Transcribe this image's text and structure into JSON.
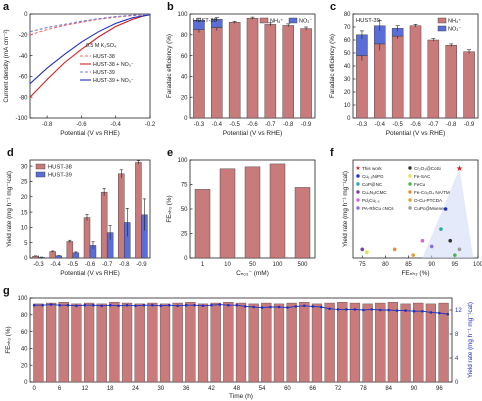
{
  "panels": {
    "a": {
      "letter": "a",
      "type": "line",
      "xlabel": "Potential (V vs RHE)",
      "ylabel": "Current density (mA cm⁻²)",
      "xlim": [
        -0.9,
        -0.2
      ],
      "ylim": [
        -100,
        0
      ],
      "xticks": [
        "-0.8",
        "-0.6",
        "-0.4",
        "-0.2"
      ],
      "yticks": [
        "0",
        "-20",
        "-40",
        "-60",
        "-80",
        "-100"
      ],
      "xtick_values": [
        -0.8,
        -0.6,
        -0.4,
        -0.2
      ],
      "ytick_values": [
        0,
        -20,
        -40,
        -60,
        -80,
        -100
      ],
      "annotation": "0.5 M K₂SO₄",
      "series": [
        {
          "name": "HUST-38",
          "color": "#f06a6a",
          "dash": "3,2",
          "x": [
            -0.9,
            -0.8,
            -0.7,
            -0.6,
            -0.5,
            -0.4,
            -0.3,
            -0.2
          ],
          "y": [
            -20,
            -15,
            -11,
            -8,
            -5,
            -3,
            -1.5,
            -0.5
          ]
        },
        {
          "name": "HUST-38 + NO₃⁻",
          "color": "#d42020",
          "dash": "",
          "x": [
            -0.9,
            -0.8,
            -0.7,
            -0.6,
            -0.5,
            -0.4,
            -0.3,
            -0.22
          ],
          "y": [
            -80,
            -63,
            -47,
            -34,
            -22,
            -12,
            -5,
            -1
          ]
        },
        {
          "name": "HUST-39",
          "color": "#7a7ad0",
          "dash": "3,2",
          "x": [
            -0.9,
            -0.8,
            -0.7,
            -0.6,
            -0.5,
            -0.4,
            -0.3,
            -0.2
          ],
          "y": [
            -17,
            -13,
            -10,
            -7,
            -4.5,
            -2.5,
            -1.2,
            -0.4
          ]
        },
        {
          "name": "HUST-39 + NO₃⁻",
          "color": "#2030c0",
          "dash": "",
          "x": [
            -0.9,
            -0.8,
            -0.7,
            -0.6,
            -0.5,
            -0.4,
            -0.3,
            -0.2
          ],
          "y": [
            -67,
            -52,
            -39,
            -27,
            -17,
            -9,
            -3.5,
            -0.8
          ]
        }
      ]
    },
    "b": {
      "letter": "b",
      "type": "bar",
      "tag": "HUST-38",
      "xlabel": "Potential (V vs RHE)",
      "ylabel": "Faradaic efficiency (%)",
      "ylim": [
        0,
        100
      ],
      "yticks": [
        "0",
        "20",
        "40",
        "60",
        "80",
        "100"
      ],
      "ytick_values": [
        0,
        20,
        40,
        60,
        80,
        100
      ],
      "categories": [
        "-0.3",
        "-0.4",
        "-0.5",
        "-0.6",
        "-0.7",
        "-0.8",
        "-0.9"
      ],
      "series": [
        {
          "name": "NH₄⁺",
          "color": "#c97a7a",
          "values": [
            85,
            87,
            92,
            96,
            90,
            89,
            86
          ],
          "err": [
            3,
            3,
            1,
            1,
            1.5,
            1.5,
            1.5
          ]
        },
        {
          "name": "NO₂⁻",
          "color": "#5a6ed6",
          "values": [
            9,
            8,
            0,
            0,
            0,
            0,
            0
          ],
          "err": [
            2,
            1.5,
            0,
            0,
            0,
            0,
            0
          ]
        }
      ]
    },
    "c": {
      "letter": "c",
      "type": "bar",
      "tag": "HUST-39",
      "xlabel": "Potential (V vs RHE)",
      "ylabel": "Faradaic efficiency (%)",
      "ylim": [
        0,
        80
      ],
      "yticks": [
        "0",
        "10",
        "20",
        "30",
        "40",
        "50",
        "60",
        "70",
        "80"
      ],
      "ytick_values": [
        0,
        10,
        20,
        30,
        40,
        50,
        60,
        70,
        80
      ],
      "categories": [
        "-0.3",
        "-0.4",
        "-0.5",
        "-0.6",
        "-0.7",
        "-0.8",
        "-0.9"
      ],
      "series": [
        {
          "name": "NH₄⁺",
          "color": "#c97a7a",
          "values": [
            48,
            57,
            63,
            71,
            60,
            56,
            51
          ],
          "err": [
            4,
            5,
            2,
            1,
            1,
            1,
            1.5
          ]
        },
        {
          "name": "NO₂⁻",
          "color": "#5a6ed6",
          "values": [
            16,
            14,
            6,
            0,
            0,
            0,
            0
          ],
          "err": [
            3,
            4,
            2,
            0,
            0,
            0,
            0
          ]
        }
      ]
    },
    "d": {
      "letter": "d",
      "type": "bar",
      "xlabel": "Potential (V vs RHE)",
      "ylabel": "Yield rate (mg h⁻¹ mg⁻¹cat)",
      "ylim": [
        0,
        32
      ],
      "yticks": [
        "0",
        "5",
        "10",
        "15",
        "20",
        "25",
        "30"
      ],
      "ytick_values": [
        0,
        5,
        10,
        15,
        20,
        25,
        30
      ],
      "categories": [
        "-0.3",
        "-0.4",
        "-0.5",
        "-0.6",
        "-0.7",
        "-0.8",
        "-0.9"
      ],
      "series": [
        {
          "name": "HUST-38",
          "color": "#c97a7a",
          "values": [
            0.6,
            2.1,
            5.4,
            13.2,
            21.5,
            27.5,
            31.2
          ],
          "err": [
            0.1,
            0.2,
            0.4,
            1.0,
            1.2,
            1.3,
            0.6
          ]
        },
        {
          "name": "HUST-39",
          "color": "#5a6ed6",
          "values": [
            0.2,
            0.7,
            1.7,
            4.1,
            8.3,
            11.6,
            14.1
          ],
          "err": [
            0.1,
            0.1,
            0.3,
            1.2,
            2.3,
            4.6,
            5.2
          ]
        }
      ]
    },
    "e": {
      "letter": "e",
      "type": "bar",
      "xlabel": "Cₙₒ₃⁻ (mM)",
      "ylabel": "FEₙₕ₃ (%)",
      "ylim": [
        0,
        100
      ],
      "yticks": [
        "0",
        "25",
        "50",
        "75",
        "100"
      ],
      "ytick_values": [
        0,
        25,
        50,
        75,
        100
      ],
      "categories": [
        "1",
        "10",
        "50",
        "100",
        "500"
      ],
      "series": [
        {
          "name": "",
          "color": "#c97a7a",
          "values": [
            70,
            91,
            93,
            96,
            72
          ]
        }
      ]
    },
    "f": {
      "letter": "f",
      "type": "scatter",
      "xlabel": "FEₙₕ₃ (%)",
      "ylabel": "Yield rate (mg h⁻¹ mg⁻¹cat)",
      "xlim": [
        73,
        100
      ],
      "xticks": [
        "75",
        "80",
        "85",
        "90",
        "95",
        "100"
      ],
      "xtick_values": [
        75,
        80,
        85,
        90,
        95,
        100
      ],
      "series": [
        {
          "name": "This work",
          "color": "#d42020",
          "marker": "star",
          "x": 96,
          "y": 31
        },
        {
          "name": "Cu₁.₅NiPG",
          "color": "#2030c0",
          "marker": "circle",
          "x": 93,
          "y": 17
        },
        {
          "name": "CoP@NC",
          "color": "#28a8a8",
          "marker": "circle",
          "x": 92,
          "y": 10
        },
        {
          "name": "Cu₄N₈ICMC",
          "color": "#7a3fa0",
          "marker": "circle",
          "x": 75,
          "y": 3
        },
        {
          "name": "Pd₁Cu₁.₅",
          "color": "#e05fe0",
          "marker": "circle",
          "x": 88,
          "y": 6
        },
        {
          "name": "PA-RhCu cNCs",
          "color": "#8a6fd0",
          "marker": "circle",
          "x": 90,
          "y": 4
        },
        {
          "name": "Cr₂O₃@CoSi",
          "color": "#333333",
          "marker": "circle",
          "x": 94,
          "y": 6
        },
        {
          "name": "Fe-SAC",
          "color": "#e4e440",
          "marker": "circle",
          "x": 76,
          "y": 2
        },
        {
          "name": "FeCu",
          "color": "#4ab54a",
          "marker": "circle",
          "x": 95,
          "y": 1
        },
        {
          "name": "Fe-Co₃O₄ NA/TM",
          "color": "#f08a3a",
          "marker": "circle",
          "x": 82,
          "y": 3
        },
        {
          "name": "O-Cu-PTCDA",
          "color": "#e0a030",
          "marker": "circle",
          "x": 86,
          "y": 1
        },
        {
          "name": "CuPc@Mxene",
          "color": "#9a9a9a",
          "marker": "circle",
          "x": 96,
          "y": 3
        }
      ]
    },
    "g": {
      "letter": "g",
      "type": "bar+line",
      "xlabel": "Time (h)",
      "ylabel": "FEₙₕ₃ (%)",
      "y2label": "Yield rate (mg h⁻¹ mg⁻¹cat)",
      "ylim": [
        0,
        100
      ],
      "y2lim": [
        0,
        14
      ],
      "yticks": [
        "0",
        "20",
        "40",
        "60",
        "80",
        "100"
      ],
      "ytick_values": [
        0,
        20,
        40,
        60,
        80,
        100
      ],
      "y2ticks": [
        "0",
        "4",
        "8",
        "12"
      ],
      "y2tick_values": [
        0,
        4,
        8,
        12
      ],
      "xticks": [
        "0",
        "6",
        "12",
        "18",
        "24",
        "30",
        "36",
        "42",
        "48",
        "54",
        "60",
        "66",
        "72",
        "78",
        "84",
        "90",
        "96"
      ],
      "xtick_values": [
        0,
        6,
        12,
        18,
        24,
        30,
        36,
        42,
        48,
        54,
        60,
        66,
        72,
        78,
        84,
        90,
        96
      ],
      "bars": {
        "color": "#c97a7a",
        "x": [
          1,
          4,
          7,
          10,
          13,
          16,
          19,
          22,
          25,
          28,
          31,
          34,
          37,
          40,
          43,
          46,
          49,
          52,
          55,
          58,
          61,
          64,
          67,
          70,
          73,
          76,
          79,
          82,
          85,
          88,
          91,
          94,
          97
        ],
        "values": [
          93,
          94,
          95,
          93,
          94,
          93,
          95,
          94,
          93,
          94,
          93,
          94,
          95,
          93,
          94,
          95,
          94,
          93,
          94,
          93,
          94,
          95,
          93,
          94,
          95,
          94,
          93,
          94,
          95,
          93,
          94,
          93,
          94
        ]
      },
      "line": {
        "color": "#2030c0",
        "x": [
          0,
          2,
          4,
          6,
          8,
          10,
          12,
          14,
          16,
          18,
          20,
          22,
          24,
          26,
          28,
          30,
          32,
          34,
          36,
          38,
          40,
          42,
          44,
          46,
          48,
          50,
          52,
          54,
          56,
          58,
          60,
          62,
          64,
          66,
          68,
          70,
          72,
          74,
          76,
          78,
          80,
          82,
          84,
          86,
          88,
          90,
          92,
          94,
          96,
          98
        ],
        "values": [
          12.8,
          12.8,
          12.9,
          12.8,
          12.8,
          12.7,
          12.8,
          12.8,
          12.7,
          12.8,
          12.7,
          12.8,
          12.7,
          12.8,
          12.8,
          12.7,
          12.8,
          12.7,
          12.8,
          12.8,
          12.7,
          12.8,
          12.9,
          12.8,
          12.8,
          12.6,
          12.5,
          12.4,
          12.5,
          12.5,
          12.4,
          12.6,
          12.7,
          12.6,
          12.5,
          12.2,
          12.1,
          12.1,
          12.1,
          12.0,
          12.1,
          12.0,
          12.0,
          11.9,
          11.9,
          11.8,
          11.8,
          11.6,
          11.5,
          11.3
        ]
      }
    }
  }
}
